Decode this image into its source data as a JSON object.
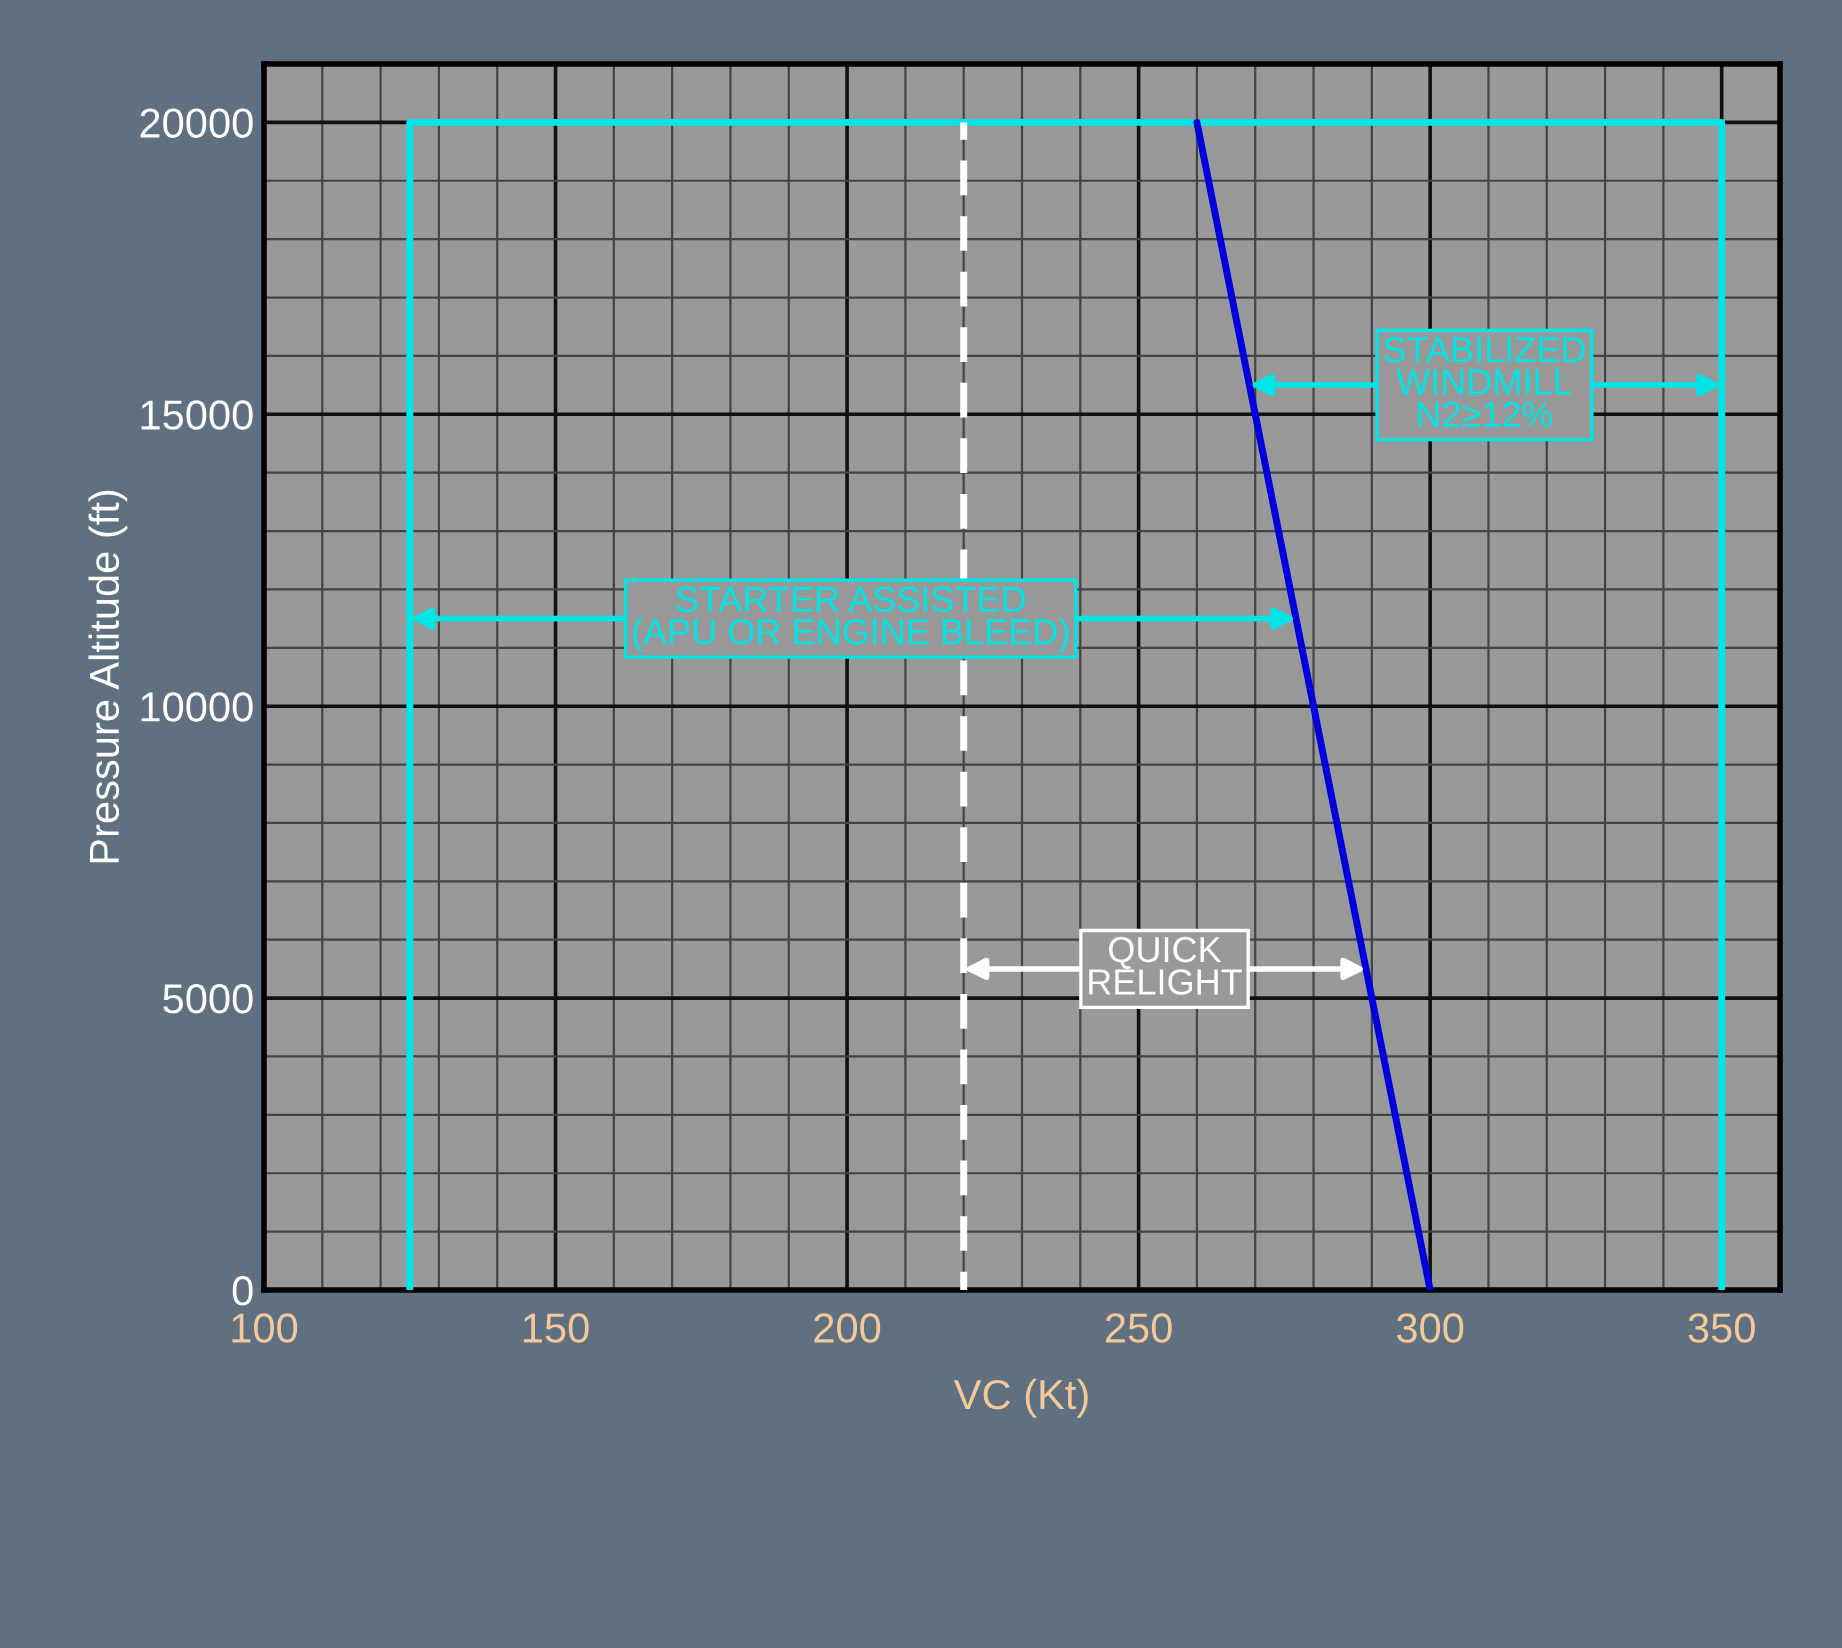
{
  "chart_data": {
    "type": "line",
    "xlabel": "VC (Kt)",
    "ylabel": "Pressure Altitude (ft)",
    "xlim": [
      100,
      360
    ],
    "ylim": [
      0,
      21000
    ],
    "xticks": [
      100,
      150,
      200,
      250,
      300,
      350
    ],
    "yticks": [
      0,
      5000,
      10000,
      15000,
      20000
    ],
    "grid": true,
    "legend": false,
    "marker": "none",
    "series": [
      {
        "color": "#00e5e5",
        "x": [
          125,
          125,
          350,
          350
        ],
        "values": [
          0,
          20000,
          20000,
          0
        ],
        "line_style": "solid"
      },
      {
        "color": "#0000dd",
        "x": [
          260,
          300
        ],
        "values": [
          20000,
          0
        ],
        "line_style": "solid"
      },
      {
        "color": "#ffffff",
        "x": [
          220,
          220
        ],
        "values": [
          0,
          20000
        ],
        "line_style": "dashed"
      }
    ],
    "annotations": [
      {
        "text": "STARTER ASSISTED\n(APU OR ENGINE BLEED)",
        "x": 277,
        "y": 11500
      },
      {
        "text": "STABILIZED\nWINDMILL\nN2≥12%",
        "x": 350,
        "y": 15500
      },
      {
        "text": "QUICK\nRELIGHT",
        "x": 289,
        "y": 5500
      }
    ]
  }
}
